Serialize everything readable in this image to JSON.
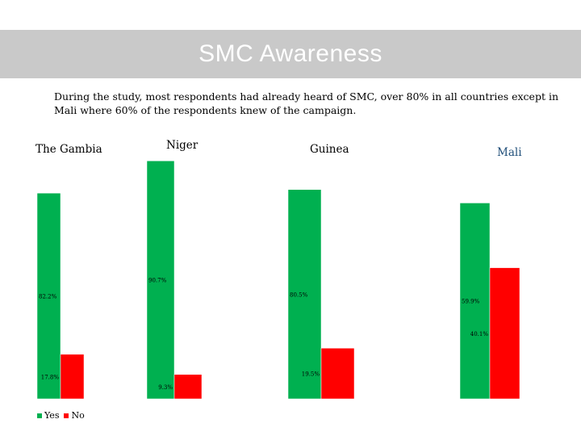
{
  "slide": {
    "title": "SMC Awareness",
    "intro": "During the study, most respondents had already heard of SMC, over 80% in all countries except in Mali where 60% of the respondents knew of the campaign."
  },
  "colors": {
    "yes": "#00b050",
    "no": "#ff0000",
    "title_bg": "#c9c9c9"
  },
  "chart_data": [
    {
      "type": "bar",
      "title": "The Gambia",
      "categories": [
        "Yes",
        "No"
      ],
      "values": [
        82.2,
        17.8
      ],
      "value_labels": [
        "82.2%",
        "17.8%"
      ]
    },
    {
      "type": "bar",
      "title": "Niger",
      "categories": [
        "Yes",
        "No"
      ],
      "values": [
        90.7,
        9.3
      ],
      "value_labels": [
        "90.7%",
        "9.3%"
      ]
    },
    {
      "type": "bar",
      "title": "Guinea",
      "categories": [
        "Yes",
        "No"
      ],
      "values": [
        80.5,
        19.5
      ],
      "value_labels": [
        "80.5%",
        "19.5%"
      ]
    },
    {
      "type": "bar",
      "title": "Mali",
      "categories": [
        "Yes",
        "No"
      ],
      "values": [
        59.9,
        40.1
      ],
      "value_labels": [
        "59.9%",
        "40.1%"
      ]
    }
  ],
  "legend": {
    "items": [
      "Yes",
      "No"
    ]
  }
}
